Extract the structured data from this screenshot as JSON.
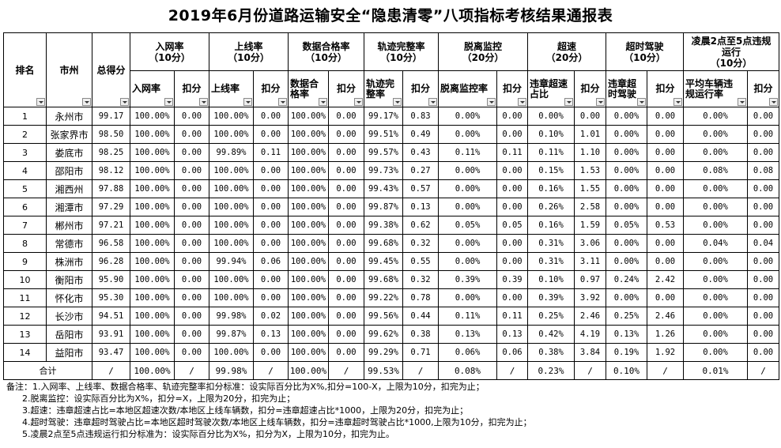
{
  "title": "2019年6月份道路运输安全“隐患清零”八项指标考核结果通报表",
  "headers": {
    "rank": "排名",
    "city": "市州",
    "score": "总得分",
    "groups": [
      {
        "label": "入网率\n（10分）",
        "sub": [
          "入网率",
          "扣分"
        ]
      },
      {
        "label": "上线率\n（10分）",
        "sub": [
          "上线率",
          "扣分"
        ]
      },
      {
        "label": "数据合格率\n（10分）",
        "sub": [
          "数据合\n格率",
          "扣分"
        ]
      },
      {
        "label": "轨迹完整率\n（10分）",
        "sub": [
          "轨迹完\n整率",
          "扣分"
        ]
      },
      {
        "label": "脱离监控\n（20分）",
        "sub": [
          "脱离监控率",
          "扣分"
        ]
      },
      {
        "label": "超速\n（20分）",
        "sub": [
          "违章超速\n占比",
          "扣分"
        ]
      },
      {
        "label": "超时驾驶\n（10分）",
        "sub": [
          "违章超\n时驾驶",
          "扣分"
        ]
      },
      {
        "label": "凌晨2点至5点违规\n运行\n（10分）",
        "sub": [
          "平均车辆违\n规运行率",
          "扣分"
        ]
      }
    ]
  },
  "rows": [
    [
      "1",
      "永州市",
      "99.17",
      "100.00%",
      "0.00",
      "100.00%",
      "0.00",
      "100.00%",
      "0.00",
      "99.17%",
      "0.83",
      "0.00%",
      "0.00",
      "0.00%",
      "0.00",
      "0.00%",
      "0.00",
      "0.00%",
      "0.00"
    ],
    [
      "2",
      "张家界市",
      "98.50",
      "100.00%",
      "0.00",
      "100.00%",
      "0.00",
      "100.00%",
      "0.00",
      "99.51%",
      "0.49",
      "0.00%",
      "0.00",
      "0.10%",
      "1.01",
      "0.00%",
      "0.00",
      "0.00%",
      "0.00"
    ],
    [
      "3",
      "娄底市",
      "98.25",
      "100.00%",
      "0.00",
      "99.89%",
      "0.11",
      "100.00%",
      "0.00",
      "99.57%",
      "0.43",
      "0.11%",
      "0.11",
      "0.11%",
      "1.10",
      "0.00%",
      "0.00",
      "0.00%",
      "0.00"
    ],
    [
      "4",
      "邵阳市",
      "98.12",
      "100.00%",
      "0.00",
      "100.00%",
      "0.00",
      "100.00%",
      "0.00",
      "99.73%",
      "0.27",
      "0.00%",
      "0.00",
      "0.15%",
      "1.53",
      "0.00%",
      "0.00",
      "0.08%",
      "0.08"
    ],
    [
      "5",
      "湘西州",
      "97.88",
      "100.00%",
      "0.00",
      "100.00%",
      "0.00",
      "100.00%",
      "0.00",
      "99.43%",
      "0.57",
      "0.00%",
      "0.00",
      "0.16%",
      "1.55",
      "0.00%",
      "0.00",
      "0.00%",
      "0.00"
    ],
    [
      "6",
      "湘潭市",
      "97.29",
      "100.00%",
      "0.00",
      "100.00%",
      "0.00",
      "100.00%",
      "0.00",
      "99.87%",
      "0.13",
      "0.00%",
      "0.00",
      "0.26%",
      "2.58",
      "0.00%",
      "0.00",
      "0.00%",
      "0.00"
    ],
    [
      "7",
      "郴州市",
      "97.21",
      "100.00%",
      "0.00",
      "100.00%",
      "0.00",
      "100.00%",
      "0.00",
      "99.38%",
      "0.62",
      "0.05%",
      "0.05",
      "0.16%",
      "1.59",
      "0.05%",
      "0.53",
      "0.00%",
      "0.00"
    ],
    [
      "8",
      "常德市",
      "96.58",
      "100.00%",
      "0.00",
      "100.00%",
      "0.00",
      "100.00%",
      "0.00",
      "99.68%",
      "0.32",
      "0.00%",
      "0.00",
      "0.31%",
      "3.06",
      "0.00%",
      "0.00",
      "0.04%",
      "0.04"
    ],
    [
      "9",
      "株洲市",
      "96.28",
      "100.00%",
      "0.00",
      "99.94%",
      "0.06",
      "100.00%",
      "0.00",
      "99.45%",
      "0.55",
      "0.00%",
      "0.00",
      "0.31%",
      "3.11",
      "0.00%",
      "0.00",
      "0.00%",
      "0.00"
    ],
    [
      "10",
      "衡阳市",
      "95.90",
      "100.00%",
      "0.00",
      "100.00%",
      "0.00",
      "100.00%",
      "0.00",
      "99.68%",
      "0.32",
      "0.39%",
      "0.39",
      "0.10%",
      "0.97",
      "0.24%",
      "2.42",
      "0.00%",
      "0.00"
    ],
    [
      "11",
      "怀化市",
      "95.30",
      "100.00%",
      "0.00",
      "100.00%",
      "0.00",
      "100.00%",
      "0.00",
      "99.22%",
      "0.78",
      "0.00%",
      "0.00",
      "0.39%",
      "3.92",
      "0.00%",
      "0.00",
      "0.00%",
      "0.00"
    ],
    [
      "12",
      "长沙市",
      "94.51",
      "100.00%",
      "0.00",
      "99.98%",
      "0.02",
      "100.00%",
      "0.00",
      "99.56%",
      "0.44",
      "0.11%",
      "0.11",
      "0.25%",
      "2.46",
      "0.25%",
      "2.46",
      "0.00%",
      "0.00"
    ],
    [
      "13",
      "岳阳市",
      "93.91",
      "100.00%",
      "0.00",
      "99.87%",
      "0.13",
      "100.00%",
      "0.00",
      "99.62%",
      "0.38",
      "0.13%",
      "0.13",
      "0.42%",
      "4.19",
      "0.13%",
      "1.26",
      "0.00%",
      "0.00"
    ],
    [
      "14",
      "益阳市",
      "93.47",
      "100.00%",
      "0.00",
      "100.00%",
      "0.00",
      "100.00%",
      "0.00",
      "99.29%",
      "0.71",
      "0.06%",
      "0.06",
      "0.38%",
      "3.84",
      "0.19%",
      "1.92",
      "0.00%",
      "0.00"
    ]
  ],
  "total_row": {
    "label": "合计",
    "cells": [
      "/",
      "100.00%",
      "/",
      "99.98%",
      "/",
      "100.00%",
      "/",
      "99.53%",
      "/",
      "0.08%",
      "/",
      "0.23%",
      "/",
      "0.10%",
      "/",
      "0.01%",
      "/"
    ]
  },
  "notes": [
    "备注：1.入网率、上线率、数据合格率、轨迹完整率扣分标准：设实际百分比为X%,扣分=100-X，上限为10分，扣完为止；",
    "2.脱离监控：设实际百分比为X%，扣分=X，上限为20分，扣完为止；",
    "3.超速：违章超速占比=本地区超速次数/本地区上线车辆数，扣分=违章超速占比*1000，上限为20分，扣完为止；",
    "4.超时驾驶：违章超时驾驶占比=本地区超时驾驶次数/本地区上线车辆数，扣分=违章超时驾驶占比*1000,上限为10分，扣完为止；",
    "5.凌晨2点至5点违规运行扣分标准为：设实际百分比为X%，扣分为X，上限为10分，扣完为止。"
  ]
}
